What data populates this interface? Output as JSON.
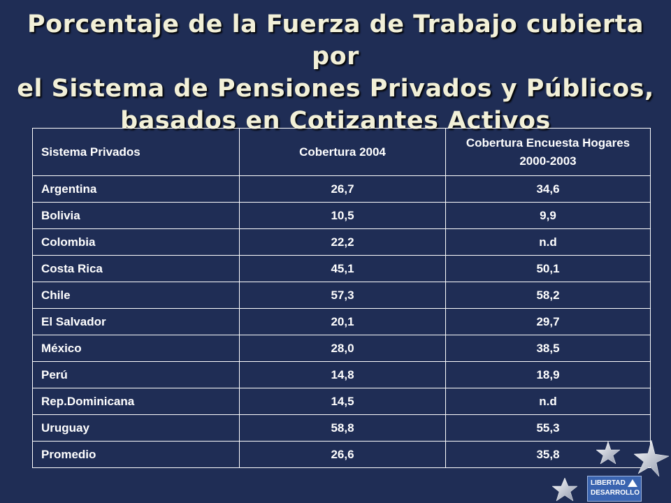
{
  "title_lines": [
    "Porcentaje de la Fuerza de Trabajo cubierta por",
    "el Sistema de Pensiones Privados y Públicos,",
    "basados en Cotizantes Activos"
  ],
  "table": {
    "headers": [
      "Sistema Privados",
      "Cobertura 2004",
      "Cobertura Encuesta Hogares 2000-2003"
    ],
    "rows": [
      [
        "Argentina",
        "26,7",
        "34,6"
      ],
      [
        "Bolivia",
        "10,5",
        "9,9"
      ],
      [
        "Colombia",
        "22,2",
        "n.d"
      ],
      [
        "Costa Rica",
        "45,1",
        "50,1"
      ],
      [
        "Chile",
        "57,3",
        "58,2"
      ],
      [
        "El Salvador",
        "20,1",
        "29,7"
      ],
      [
        "México",
        "28,0",
        "38,5"
      ],
      [
        "Perú",
        "14,8",
        "18,9"
      ],
      [
        "Rep.Dominicana",
        "14,5",
        "n.d"
      ],
      [
        "Uruguay",
        "58,8",
        "55,3"
      ],
      [
        "Promedio",
        "26,6",
        "35,8"
      ]
    ]
  },
  "logo": {
    "lines": [
      "LIBERTAD",
      "DESARROLLO"
    ]
  },
  "colors": {
    "background": "#1f2d55",
    "title": "#f2f0d8",
    "table_text": "#ffffff",
    "logo": "#3a64b0"
  }
}
